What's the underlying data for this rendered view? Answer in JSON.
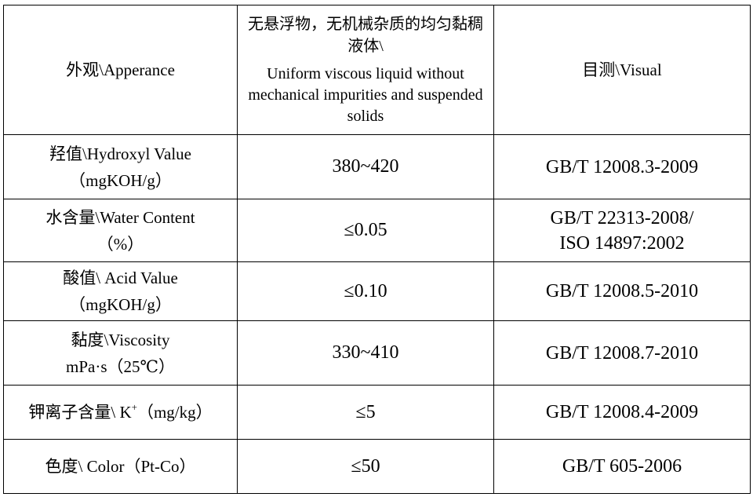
{
  "rows": [
    {
      "property": [
        "外观\\Apperance"
      ],
      "spec_zh": "无悬浮物，无机械杂质的均匀黏稠液体\\",
      "spec_en": "Uniform viscous liquid without mechanical impurities and suspended solids",
      "method": [
        "目测\\Visual"
      ]
    },
    {
      "property": [
        "羟值\\Hydroxyl Value",
        "（mgKOH/g）"
      ],
      "spec": "380~420",
      "method": [
        "GB/T 12008.3-2009"
      ]
    },
    {
      "property": [
        "水含量\\Water Content",
        "（%）"
      ],
      "spec": "≤0.05",
      "method": [
        "GB/T 22313-2008/",
        "ISO 14897:2002"
      ]
    },
    {
      "property": [
        "酸值\\ Acid Value",
        "（mgKOH/g）"
      ],
      "spec": "≤0.10",
      "method": [
        "GB/T 12008.5-2010"
      ]
    },
    {
      "property": [
        "黏度\\Viscosity",
        "mPa·s（25℃）"
      ],
      "spec": "330~410",
      "method": [
        "GB/T 12008.7-2010"
      ]
    },
    {
      "property_prefix": "钾离子含量\\ K",
      "property_sup": "+",
      "property_suffix": "（mg/kg）",
      "spec": "≤5",
      "method": [
        "GB/T 12008.4-2009"
      ]
    },
    {
      "property": [
        "色度\\ Color（Pt-Co）"
      ],
      "spec": "≤50",
      "method": [
        "GB/T 605-2006"
      ]
    }
  ]
}
